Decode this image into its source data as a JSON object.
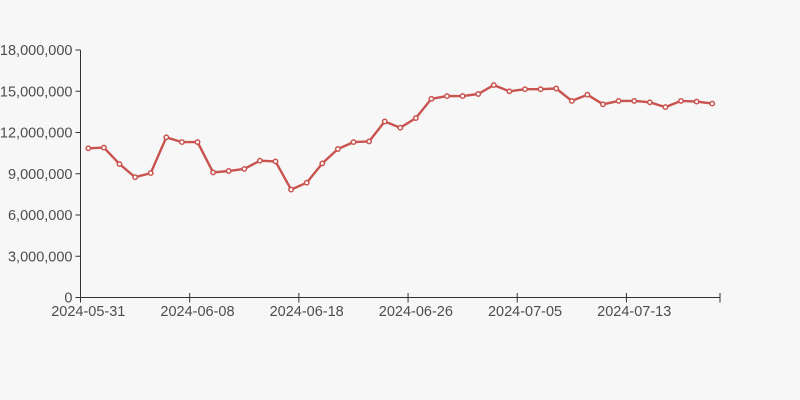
{
  "chart_data": {
    "type": "line",
    "title": "",
    "legend": false,
    "grid": false,
    "background_color": "#f7f7f7",
    "axis_color": "#333333",
    "label_color": "#4d4d4d",
    "marker_fill": "#fdfdfd",
    "x": {
      "num_points": 41,
      "tick_labels": [
        "2024-05-31",
        "2024-06-08",
        "2024-06-18",
        "2024-06-26",
        "2024-07-05",
        "2024-07-13"
      ],
      "tick_label_indices": [
        0,
        7,
        14,
        21,
        28,
        35
      ],
      "tick_boundary_indices": [
        0,
        7,
        14,
        21,
        28,
        35,
        41
      ]
    },
    "y": {
      "min": 0,
      "max": 18000000,
      "tick_interval": 3000000,
      "tick_labels": [
        "0",
        "3,000,000",
        "6,000,000",
        "9,000,000",
        "12,000,000",
        "15,000,000",
        "18,000,000"
      ]
    },
    "series": [
      {
        "name": "value",
        "color": "#c9534f",
        "values": [
          10850000,
          10900000,
          9700000,
          8750000,
          9050000,
          11650000,
          11300000,
          11300000,
          9100000,
          9200000,
          9350000,
          9950000,
          9900000,
          7850000,
          8350000,
          9750000,
          10800000,
          11300000,
          11350000,
          12800000,
          12350000,
          13050000,
          14450000,
          14650000,
          14650000,
          14800000,
          15450000,
          15000000,
          15150000,
          15150000,
          15200000,
          14300000,
          14750000,
          14050000,
          14300000,
          14300000,
          14200000,
          13850000,
          14300000,
          14250000,
          14100000
        ]
      }
    ]
  }
}
